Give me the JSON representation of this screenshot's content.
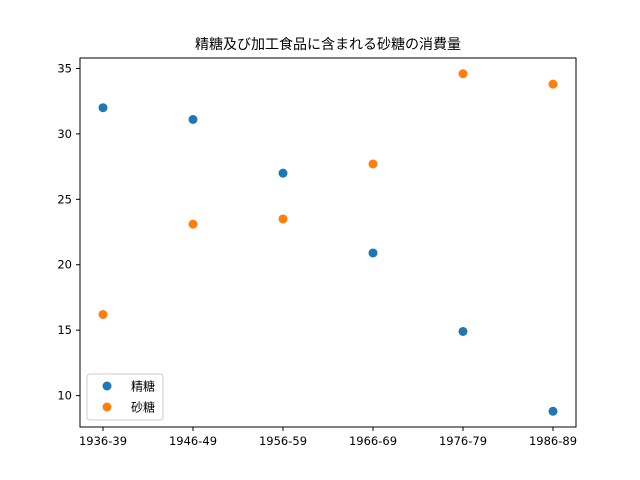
{
  "chart_data": {
    "type": "scatter",
    "title": "精糖及び加工食品に含まれる砂糖の消費量",
    "xlabel": "",
    "ylabel": "",
    "categories": [
      "1936-39",
      "1946-49",
      "1956-59",
      "1966-69",
      "1976-79",
      "1986-89"
    ],
    "series": [
      {
        "name": "精糖",
        "color": "#1f77b4",
        "values": [
          32.0,
          31.1,
          27.0,
          20.9,
          14.9,
          8.8
        ]
      },
      {
        "name": "砂糖",
        "color": "#ff7f0e",
        "values": [
          16.2,
          23.1,
          23.5,
          27.7,
          34.6,
          33.8
        ]
      }
    ],
    "ylim": [
      7.6,
      35.8
    ],
    "yticks": [
      10,
      15,
      20,
      25,
      30,
      35
    ],
    "grid": false,
    "legend_position": "lower-left"
  }
}
